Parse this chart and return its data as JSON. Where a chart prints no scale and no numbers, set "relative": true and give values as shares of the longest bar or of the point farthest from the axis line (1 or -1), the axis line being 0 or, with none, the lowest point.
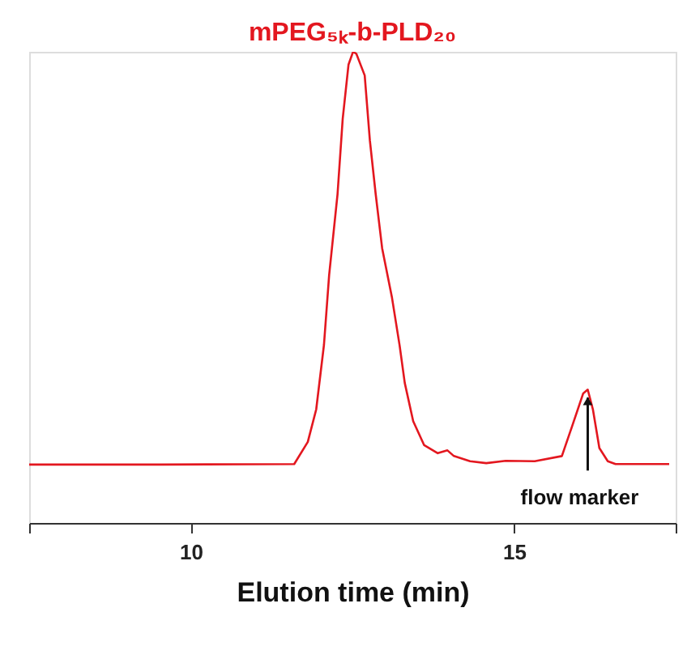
{
  "chart_data": {
    "type": "line",
    "title": "mPEG₅ₖ-b-PLD₂₀",
    "xlabel": "Elution time (min)",
    "relative": true,
    "x": [
      7.5,
      9.55,
      11.6,
      11.81,
      11.94,
      12.06,
      12.14,
      12.27,
      12.35,
      12.44,
      12.51,
      12.56,
      12.69,
      12.77,
      12.86,
      12.96,
      13.11,
      13.23,
      13.31,
      13.44,
      13.61,
      13.82,
      13.97,
      14.07,
      14.32,
      14.57,
      14.87,
      15.32,
      15.74,
      15.9,
      16.07,
      16.14,
      16.22,
      16.32,
      16.45,
      16.57,
      17.4
    ],
    "series": [
      {
        "color": "#e3171f",
        "values": [
          0.124,
          0.124,
          0.125,
          0.172,
          0.241,
          0.378,
          0.526,
          0.698,
          0.858,
          0.973,
          1.0,
          0.996,
          0.95,
          0.812,
          0.698,
          0.583,
          0.48,
          0.377,
          0.297,
          0.216,
          0.165,
          0.148,
          0.154,
          0.142,
          0.131,
          0.127,
          0.132,
          0.131,
          0.142,
          0.206,
          0.275,
          0.283,
          0.241,
          0.159,
          0.131,
          0.125,
          0.125
        ]
      }
    ],
    "xlim": [
      7.5,
      17.5
    ],
    "xticks": [
      {
        "value": 7.5,
        "label": null
      },
      10,
      15,
      {
        "value": 17.5,
        "label": null
      }
    ],
    "annotations": [
      {
        "text": "flow marker",
        "x": 16.14,
        "y": 0.283
      }
    ]
  }
}
